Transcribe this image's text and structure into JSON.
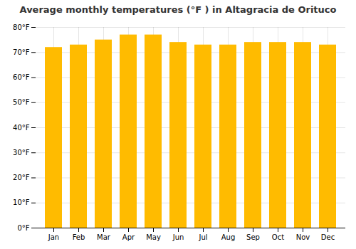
{
  "chart_data": {
    "type": "bar",
    "title": "Average monthly temperatures (°F ) in Altagracia de Orituco",
    "categories": [
      "Jan",
      "Feb",
      "Mar",
      "Apr",
      "May",
      "Jun",
      "Jul",
      "Aug",
      "Sep",
      "Oct",
      "Nov",
      "Dec"
    ],
    "values": [
      72,
      73,
      75,
      77,
      77,
      74,
      73,
      73,
      74,
      74,
      74,
      73
    ],
    "color": "#FFBB00",
    "ylim": [
      0,
      80
    ],
    "yticks": [
      {
        "value": 0,
        "label": "0°F"
      },
      {
        "value": 10,
        "label": "10°F"
      },
      {
        "value": 20,
        "label": "20°F"
      },
      {
        "value": 30,
        "label": "30°F"
      },
      {
        "value": 40,
        "label": "40°F"
      },
      {
        "value": 50,
        "label": "50°F"
      },
      {
        "value": 60,
        "label": "60°F"
      },
      {
        "value": 70,
        "label": "70°F"
      },
      {
        "value": 80,
        "label": "80°F"
      }
    ],
    "grid": true
  }
}
